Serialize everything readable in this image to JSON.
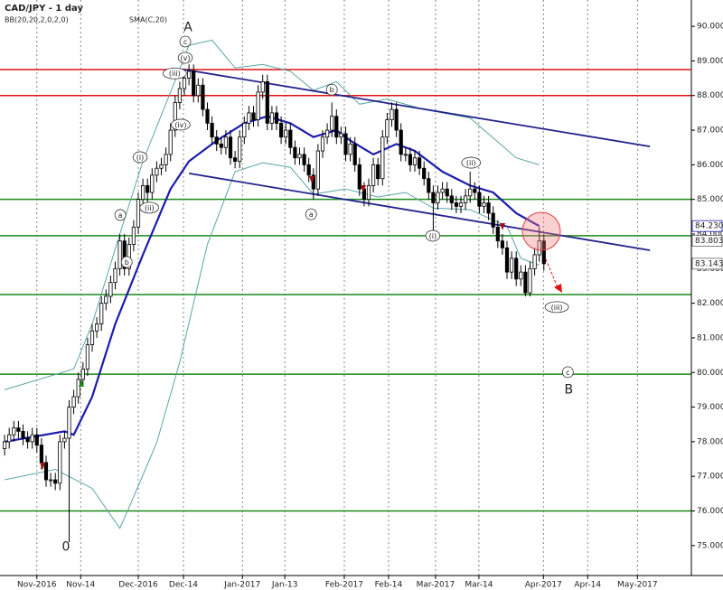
{
  "chart_data": {
    "type": "candlestick",
    "title": "CAD/JPY - 1 day",
    "xlim": [
      -1,
      149
    ],
    "ylim": [
      74.16,
      90.76
    ],
    "xticks": [
      {
        "value": 7,
        "label": "Nov-2016"
      },
      {
        "value": 16.5,
        "label": "Nov-14"
      },
      {
        "value": 29,
        "label": "Dec-2016"
      },
      {
        "value": 38.8,
        "label": "Dec-14"
      },
      {
        "value": 51.6,
        "label": "Jan-2017"
      },
      {
        "value": 60.8,
        "label": "Jan-13"
      },
      {
        "value": 73.7,
        "label": "Feb-2017"
      },
      {
        "value": 83.3,
        "label": "Feb-14"
      },
      {
        "value": 93.5,
        "label": "Mar-2017"
      },
      {
        "value": 102.9,
        "label": "Mar-14"
      },
      {
        "value": 116.9,
        "label": "Apr-2017"
      },
      {
        "value": 126.5,
        "label": "Apr-14"
      },
      {
        "value": 137.3,
        "label": "May-2017"
      }
    ],
    "yticks": [
      {
        "value": 90,
        "label": "90.000"
      },
      {
        "value": 89,
        "label": "89.000"
      },
      {
        "value": 88,
        "label": "88.000"
      },
      {
        "value": 87,
        "label": "87.000"
      },
      {
        "value": 86,
        "label": "86.000"
      },
      {
        "value": 85,
        "label": "85.000"
      },
      {
        "value": 84,
        "label": "84.000"
      },
      {
        "value": 83,
        "label": "83.000"
      },
      {
        "value": 82,
        "label": "82.000"
      },
      {
        "value": 81,
        "label": "81.000"
      },
      {
        "value": 80,
        "label": "80.000"
      },
      {
        "value": 79,
        "label": "79.000"
      },
      {
        "value": 78,
        "label": "78.000"
      },
      {
        "value": 77,
        "label": "77.000"
      },
      {
        "value": 76,
        "label": "76.000"
      },
      {
        "value": 75,
        "label": "75.000"
      }
    ],
    "grid": true,
    "up_color": "#ffffff",
    "down_color": "#000000",
    "candles": {
      "open": [
        77.8,
        78.0,
        78.2,
        78.4,
        78.3,
        78.1,
        78.0,
        78.2,
        77.9,
        77.4,
        76.9,
        76.9,
        76.8,
        78.0,
        78.1,
        79.0,
        79.3,
        79.8,
        80.1,
        80.8,
        81.2,
        81.4,
        82.0,
        82.2,
        82.6,
        83.0,
        83.8,
        83.0,
        83.7,
        84.2,
        85.0,
        85.4,
        85.2,
        85.7,
        85.9,
        86.0,
        86.3,
        87.0,
        87.8,
        88.2,
        88.5,
        88.7,
        88.0,
        88.3,
        87.6,
        87.2,
        86.8,
        86.6,
        86.5,
        86.8,
        86.2,
        86.1,
        86.8,
        87.2,
        87.5,
        87.3,
        88.1,
        88.4,
        87.2,
        87.5,
        87.2,
        86.8,
        87.0,
        86.5,
        86.2,
        86.3,
        86.0,
        85.7,
        85.3,
        86.4,
        86.8,
        87.0,
        87.4,
        86.8,
        86.9,
        86.3,
        86.6,
        86.0,
        85.3,
        85.0,
        85.4,
        86.0,
        85.6,
        86.8,
        87.3,
        87.6,
        87.0,
        86.3,
        86.3,
        86.0,
        86.2,
        85.9,
        85.6,
        85.2,
        84.9,
        85.2,
        85.3,
        85.1,
        84.9,
        84.8,
        84.9,
        85.1,
        85.3,
        85.2,
        84.8,
        84.9,
        84.6,
        84.2,
        83.8,
        83.6,
        82.9,
        83.3,
        82.7,
        82.9,
        82.3,
        83.0,
        83.4,
        83.8
      ],
      "high": [
        78.2,
        78.4,
        78.6,
        78.6,
        78.5,
        78.3,
        78.4,
        78.4,
        78.1,
        77.6,
        77.1,
        77.1,
        78.2,
        78.3,
        79.2,
        79.5,
        80.0,
        80.3,
        81.0,
        81.4,
        81.6,
        82.2,
        82.4,
        82.8,
        83.2,
        84.0,
        84.0,
        83.9,
        84.4,
        85.2,
        85.6,
        85.6,
        85.9,
        86.1,
        86.2,
        86.5,
        87.2,
        88.0,
        88.4,
        88.7,
        88.9,
        88.9,
        88.5,
        88.5,
        87.8,
        87.4,
        87.0,
        86.8,
        87.0,
        87.0,
        86.4,
        87.0,
        87.4,
        87.7,
        87.7,
        88.3,
        88.6,
        88.6,
        87.7,
        87.7,
        87.4,
        87.2,
        87.2,
        86.7,
        86.5,
        86.5,
        86.2,
        85.9,
        86.6,
        87.0,
        87.2,
        87.8,
        87.6,
        87.1,
        87.1,
        86.8,
        86.8,
        86.2,
        85.5,
        85.6,
        86.2,
        86.2,
        87.0,
        87.5,
        87.8,
        87.8,
        87.2,
        86.5,
        86.5,
        86.4,
        86.4,
        86.1,
        85.8,
        85.4,
        85.4,
        85.5,
        85.5,
        85.3,
        85.1,
        85.1,
        85.3,
        85.8,
        85.5,
        85.4,
        85.1,
        85.1,
        84.8,
        84.4,
        84.0,
        83.8,
        83.5,
        83.5,
        83.1,
        83.1,
        83.2,
        83.6,
        84.2,
        84.0
      ],
      "low": [
        77.6,
        77.8,
        78.0,
        78.1,
        77.9,
        77.8,
        77.8,
        77.7,
        77.2,
        76.7,
        76.7,
        76.6,
        76.6,
        77.8,
        75.1,
        78.8,
        79.1,
        79.6,
        79.9,
        80.6,
        81.0,
        81.2,
        81.8,
        82.0,
        82.4,
        82.8,
        82.8,
        82.8,
        83.5,
        84.0,
        84.8,
        84.9,
        85.0,
        85.5,
        85.7,
        85.8,
        86.1,
        86.8,
        87.6,
        88.0,
        88.3,
        87.8,
        87.8,
        87.4,
        87.0,
        86.6,
        86.4,
        86.3,
        86.3,
        86.0,
        85.9,
        85.9,
        86.6,
        87.0,
        87.1,
        87.1,
        87.9,
        87.0,
        87.0,
        87.0,
        86.6,
        86.6,
        86.3,
        86.0,
        86.0,
        85.8,
        85.5,
        85.0,
        85.1,
        86.2,
        86.6,
        86.8,
        86.6,
        86.6,
        86.1,
        86.1,
        85.8,
        85.1,
        84.8,
        84.8,
        85.2,
        85.4,
        85.4,
        86.6,
        87.1,
        86.8,
        86.1,
        86.1,
        85.8,
        85.8,
        85.7,
        85.4,
        85.0,
        84.1,
        84.7,
        85.0,
        84.9,
        84.7,
        84.6,
        84.6,
        84.7,
        84.9,
        85.0,
        84.6,
        84.6,
        84.4,
        84.0,
        83.6,
        83.4,
        82.7,
        82.7,
        82.5,
        82.5,
        82.2,
        82.2,
        82.8,
        83.2,
        82.94
      ],
      "close": [
        78.0,
        78.2,
        78.4,
        78.3,
        78.1,
        78.0,
        78.2,
        77.9,
        77.4,
        76.9,
        76.9,
        76.8,
        78.0,
        78.1,
        79.0,
        79.3,
        79.8,
        80.1,
        80.8,
        81.2,
        81.4,
        82.0,
        82.2,
        82.6,
        83.0,
        83.8,
        83.0,
        83.7,
        84.2,
        85.0,
        85.4,
        85.2,
        85.7,
        85.9,
        86.0,
        86.3,
        87.0,
        87.8,
        88.2,
        88.5,
        88.7,
        88.0,
        88.3,
        87.6,
        87.2,
        86.8,
        86.6,
        86.5,
        86.8,
        86.2,
        86.1,
        86.8,
        87.2,
        87.5,
        87.3,
        88.1,
        88.4,
        87.2,
        87.5,
        87.2,
        86.8,
        87.0,
        86.5,
        86.2,
        86.3,
        86.0,
        85.7,
        85.3,
        86.4,
        86.8,
        87.0,
        87.4,
        86.8,
        86.9,
        86.3,
        86.6,
        86.0,
        85.3,
        85.0,
        85.4,
        86.0,
        85.6,
        86.8,
        87.3,
        87.6,
        87.0,
        86.3,
        86.3,
        86.0,
        86.2,
        85.9,
        85.6,
        85.2,
        84.9,
        85.2,
        85.3,
        85.1,
        84.9,
        84.8,
        84.9,
        85.1,
        85.3,
        85.2,
        84.8,
        84.9,
        84.6,
        84.2,
        83.8,
        83.6,
        82.9,
        83.3,
        82.7,
        82.9,
        82.3,
        83.0,
        83.4,
        83.8,
        83.14
      ]
    },
    "bb": {
      "name": "BB(20,20,2,0,2,0)",
      "color": "#5ba5a5",
      "x_upper": [
        0,
        15,
        19,
        25,
        30,
        36,
        40,
        45,
        50,
        56,
        62,
        67,
        72,
        77,
        83,
        91,
        101,
        111,
        116
      ],
      "upper": [
        79.5,
        80.1,
        81.4,
        84.0,
        86.1,
        88.1,
        89.45,
        89.6,
        88.8,
        88.9,
        88.7,
        88.15,
        88.4,
        87.75,
        87.9,
        87.6,
        87.35,
        86.2,
        86.0
      ],
      "x_lower": [
        0,
        11,
        19,
        25,
        27,
        33,
        38,
        44,
        50,
        56,
        62,
        67,
        74,
        81,
        87,
        93,
        101,
        109,
        112,
        116
      ],
      "lower": [
        76.9,
        77.2,
        76.65,
        75.5,
        76.1,
        77.97,
        80.3,
        83.7,
        85.8,
        86.06,
        85.93,
        85.15,
        85.3,
        85.07,
        85.2,
        84.75,
        84.7,
        84.23,
        83.3,
        83.1
      ]
    },
    "sma": {
      "name": "SMA(C,20)",
      "color": "#1c1cae",
      "x": [
        0,
        13,
        15,
        19,
        24,
        30,
        36,
        40,
        46,
        52,
        57,
        62,
        67,
        72,
        75,
        80,
        85,
        89,
        95,
        101,
        106,
        111,
        116
      ],
      "values": [
        78.0,
        78.3,
        78.2,
        79.3,
        81.4,
        83.4,
        85.3,
        86.1,
        86.7,
        87.2,
        87.4,
        87.2,
        86.8,
        87.0,
        86.7,
        86.3,
        86.6,
        86.4,
        85.8,
        85.4,
        85.2,
        84.6,
        84.23
      ]
    },
    "levels": [
      {
        "value": 88.75,
        "color": "#e01010"
      },
      {
        "value": 88.0,
        "color": "#e01010"
      },
      {
        "value": 85.0,
        "color": "#1a8a1a"
      },
      {
        "value": 83.95,
        "color": "#1a8a1a"
      },
      {
        "value": 82.25,
        "color": "#1a8a1a"
      },
      {
        "value": 79.95,
        "color": "#1a8a1a"
      },
      {
        "value": 76.0,
        "color": "#1a8a1a"
      }
    ],
    "trendlines": [
      {
        "x": [
          39,
          140
        ],
        "y": [
          88.75,
          86.53
        ],
        "color": "#23238c"
      },
      {
        "x": [
          40,
          140
        ],
        "y": [
          85.75,
          83.53
        ],
        "color": "#23238c"
      }
    ],
    "price_labels": {
      "values": [
        84.23,
        83.803,
        83.143
      ],
      "value_labels": [
        "84.230",
        "83.803",
        "83.143"
      ]
    },
    "annotations": [
      {
        "text": "A",
        "x": 39.8,
        "y": 89.97,
        "size": 14
      },
      {
        "text": "0",
        "x": 13.3,
        "y": 74.95,
        "size": 14
      },
      {
        "text": "B",
        "x": 122.4,
        "y": 79.5,
        "size": 14
      },
      {
        "text": "c",
        "x": 39.2,
        "y": 89.56
      },
      {
        "text": "(v)",
        "x": 39.2,
        "y": 89.09
      },
      {
        "text": "(iii)",
        "x": 36.9,
        "y": 88.64
      },
      {
        "text": "(iv)",
        "x": 38.2,
        "y": 87.16
      },
      {
        "text": "(i)",
        "x": 29.4,
        "y": 86.22
      },
      {
        "text": "(ii)",
        "x": 31.4,
        "y": 84.76
      },
      {
        "text": "a",
        "x": 25.1,
        "y": 84.55
      },
      {
        "text": "b",
        "x": 26.5,
        "y": 83.19
      },
      {
        "text": "b",
        "x": 71,
        "y": 88.17
      },
      {
        "text": "a",
        "x": 66.5,
        "y": 84.57
      },
      {
        "text": "(i)",
        "x": 92.9,
        "y": 83.95
      },
      {
        "text": "(ii)",
        "x": 101.2,
        "y": 86.06
      },
      {
        "text": "(iii)",
        "x": 119.8,
        "y": 81.89
      },
      {
        "text": "c",
        "x": 122.2,
        "y": 80.01
      }
    ]
  }
}
